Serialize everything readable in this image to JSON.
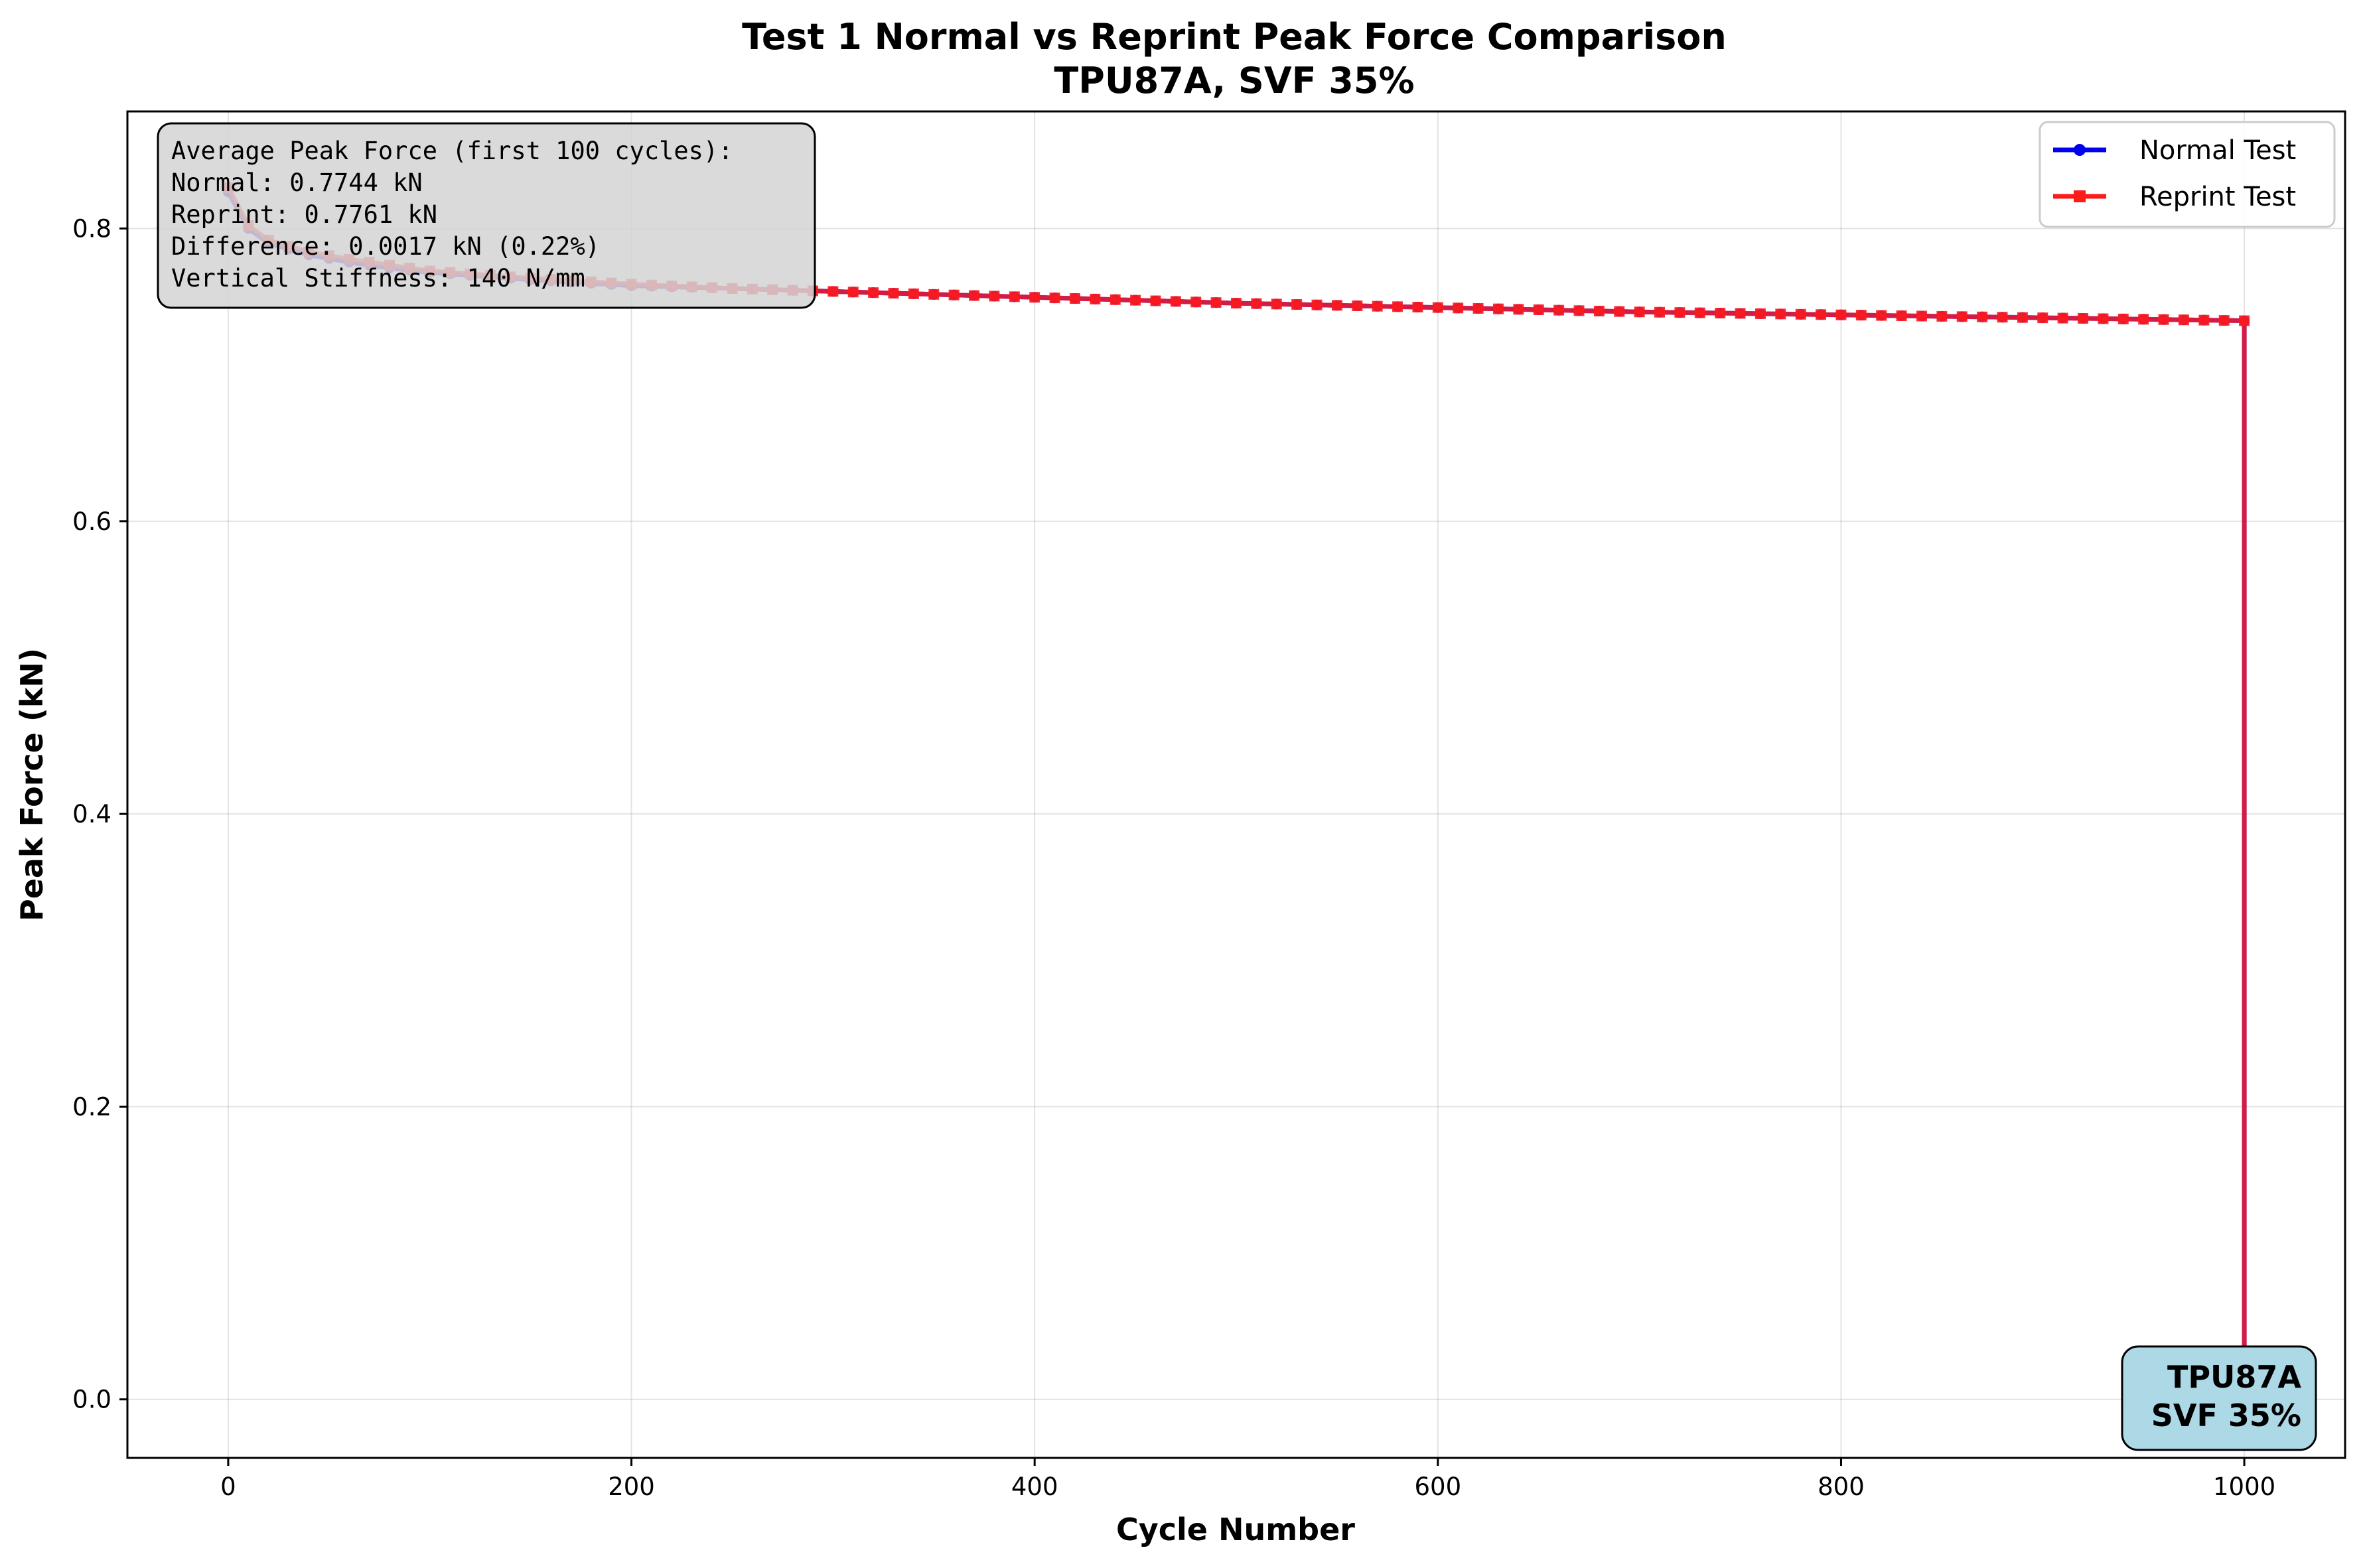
{
  "chart_data": {
    "type": "line",
    "title_line1": "Test 1 Normal vs Reprint Peak Force Comparison",
    "title_line2": "TPU87A, SVF 35%",
    "xlabel": "Cycle Number",
    "ylabel": "Peak Force (kN)",
    "xlim": [
      -50,
      1050
    ],
    "ylim": [
      -0.04,
      0.88
    ],
    "xticks": [
      0,
      200,
      400,
      600,
      800,
      1000
    ],
    "xtick_labels": [
      "0",
      "200",
      "400",
      "600",
      "800",
      "1000"
    ],
    "yticks": [
      0.0,
      0.2,
      0.4,
      0.6,
      0.8
    ],
    "ytick_labels": [
      "0.0",
      "0.2",
      "0.4",
      "0.6",
      "0.8"
    ],
    "grid": true,
    "legend_position": "top-right",
    "series": [
      {
        "name": "Normal Test",
        "color": "#0000ee",
        "marker": "circle",
        "x": [
          0,
          10,
          20,
          40,
          60,
          80,
          100,
          150,
          200,
          250,
          300,
          400,
          500,
          600,
          700,
          800,
          900,
          1000,
          1000
        ],
        "y": [
          0.825,
          0.8,
          0.79,
          0.782,
          0.777,
          0.773,
          0.77,
          0.765,
          0.761,
          0.759,
          0.757,
          0.753,
          0.749,
          0.746,
          0.743,
          0.741,
          0.739,
          0.737,
          0.0
        ]
      },
      {
        "name": "Reprint Test",
        "color": "#ff1a1a",
        "marker": "square",
        "x": [
          0,
          10,
          20,
          40,
          60,
          80,
          100,
          150,
          200,
          250,
          300,
          400,
          500,
          600,
          700,
          800,
          900,
          1000,
          1000
        ],
        "y": [
          0.828,
          0.802,
          0.792,
          0.784,
          0.779,
          0.775,
          0.771,
          0.766,
          0.762,
          0.759,
          0.757,
          0.753,
          0.749,
          0.746,
          0.743,
          0.741,
          0.739,
          0.737,
          0.0
        ]
      }
    ],
    "annotations": {
      "stats_lines": [
        "Average Peak Force (first 100 cycles):",
        "Normal: 0.7744 kN",
        "Reprint: 0.7761 kN",
        "Difference: 0.0017 kN (0.22%)",
        "Vertical Stiffness: 140 N/mm"
      ],
      "stats_box_color": "#d3d3d3",
      "badge_lines": [
        "TPU87A",
        "SVF 35%"
      ],
      "badge_color": "#add8e6"
    }
  }
}
